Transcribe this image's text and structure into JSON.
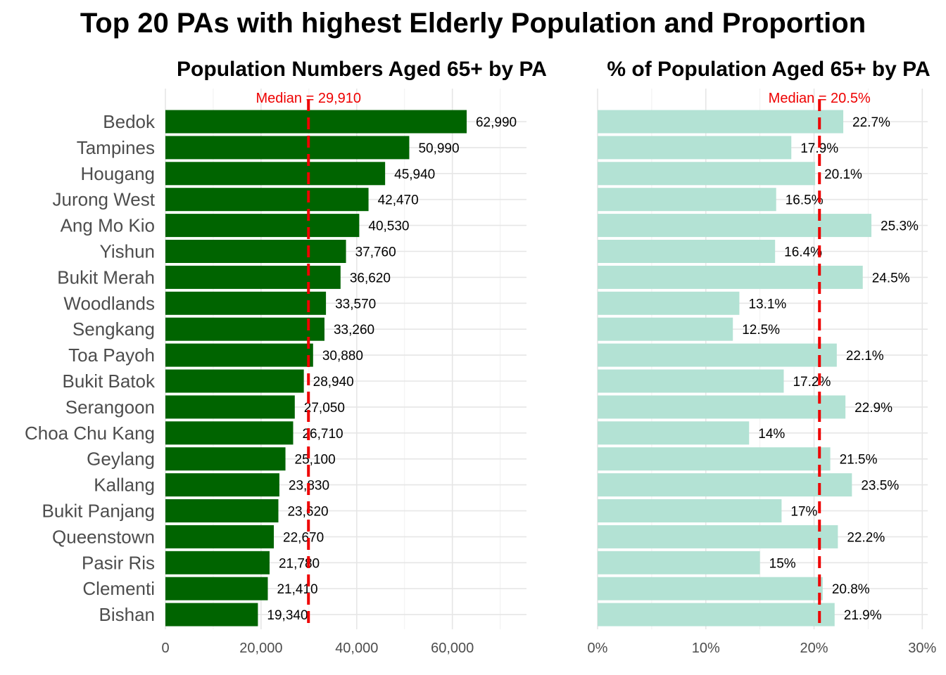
{
  "title": "Top 20 PAs with highest Elderly Population and Proportion",
  "colors": {
    "left_bar": "#006400",
    "right_bar": "#b3e2d4",
    "median": "#ee0000",
    "grid": "#e6e6e6",
    "tick_text": "#4d4d4d"
  },
  "chart_data": [
    {
      "type": "bar",
      "orientation": "horizontal",
      "title": "Population Numbers Aged 65+ by PA",
      "categories": [
        "Bedok",
        "Tampines",
        "Hougang",
        "Jurong West",
        "Ang Mo Kio",
        "Yishun",
        "Bukit Merah",
        "Woodlands",
        "Sengkang",
        "Toa Payoh",
        "Bukit Batok",
        "Serangoon",
        "Choa Chu Kang",
        "Geylang",
        "Kallang",
        "Bukit Panjang",
        "Queenstown",
        "Pasir Ris",
        "Clementi",
        "Bishan"
      ],
      "values": [
        62990,
        50990,
        45940,
        42470,
        40530,
        37760,
        36620,
        33570,
        33260,
        30880,
        28940,
        27050,
        26710,
        25100,
        23830,
        23620,
        22670,
        21780,
        21410,
        19340
      ],
      "data_labels": [
        "62,990",
        "50,990",
        "45,940",
        "42,470",
        "40,530",
        "37,760",
        "36,620",
        "33,570",
        "33,260",
        "30,880",
        "28,940",
        "27,050",
        "26,710",
        "25,100",
        "23,830",
        "23,620",
        "22,670",
        "21,780",
        "21,410",
        "19,340"
      ],
      "xlim": [
        0,
        75500
      ],
      "xticks": [
        0,
        20000,
        40000,
        60000
      ],
      "xtick_labels": [
        "0",
        "20,000",
        "40,000",
        "60,000"
      ],
      "median": 29910,
      "median_label": "Median = 29,910",
      "grid": true
    },
    {
      "type": "bar",
      "orientation": "horizontal",
      "title": "% of Population Aged 65+ by PA",
      "categories": [
        "Bedok",
        "Tampines",
        "Hougang",
        "Jurong West",
        "Ang Mo Kio",
        "Yishun",
        "Bukit Merah",
        "Woodlands",
        "Sengkang",
        "Toa Payoh",
        "Bukit Batok",
        "Serangoon",
        "Choa Chu Kang",
        "Geylang",
        "Kallang",
        "Bukit Panjang",
        "Queenstown",
        "Pasir Ris",
        "Clementi",
        "Bishan"
      ],
      "values": [
        22.7,
        17.9,
        20.1,
        16.5,
        25.3,
        16.4,
        24.5,
        13.1,
        12.5,
        22.1,
        17.2,
        22.9,
        14,
        21.5,
        23.5,
        17,
        22.2,
        15,
        20.8,
        21.9
      ],
      "data_labels": [
        "22.7%",
        "17.9%",
        "20.1%",
        "16.5%",
        "25.3%",
        "16.4%",
        "24.5%",
        "13.1%",
        "12.5%",
        "22.1%",
        "17.2%",
        "22.9%",
        "14%",
        "21.5%",
        "23.5%",
        "17%",
        "22.2%",
        "15%",
        "20.8%",
        "21.9%"
      ],
      "xlim": [
        0,
        30.5
      ],
      "xticks": [
        0,
        10,
        20,
        30
      ],
      "xtick_labels": [
        "0%",
        "10%",
        "20%",
        "30%"
      ],
      "median": 20.5,
      "median_label": "Median = 20.5%",
      "grid": true
    }
  ]
}
